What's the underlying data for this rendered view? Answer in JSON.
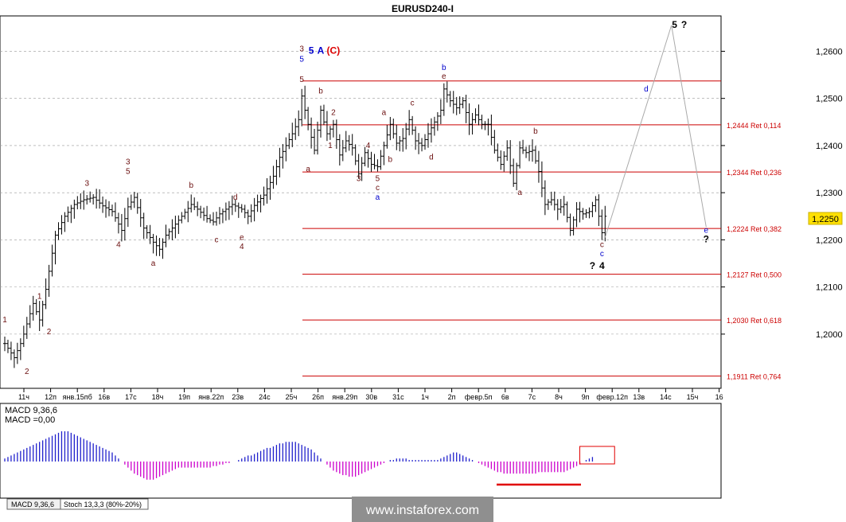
{
  "title": "EURUSD240-I",
  "current_price": "1,2250",
  "watermark": "www.instaforex.com",
  "tabs": [
    "MACD 9,36,6",
    "Stoch 13,3,3 (80%-20%)"
  ],
  "macd_labels": [
    "MACD 9,36,6",
    "MACD =0,00"
  ],
  "colors": {
    "candle": "#000000",
    "fib": "#cc0000",
    "wave_dark": "#6b0f0f",
    "wave_blue": "#0000cc",
    "wave_red": "#dd0000",
    "macd_pos": "#2020cc",
    "macd_neg": "#cc00cc",
    "projection": "#aaaaaa",
    "tag_bg": "#ffe000"
  },
  "chart_data": {
    "type": "candlestick",
    "symbol": "EURUSD240-I",
    "ylim": [
      1.1885,
      1.2675
    ],
    "y_ticks": [
      "1,2600",
      "1,2500",
      "1,2400",
      "1,2300",
      "1,2200",
      "1,2100",
      "1,2000"
    ],
    "x_ticks": [
      "11ч",
      "12п",
      "янв.15пб",
      "16в",
      "17с",
      "18ч",
      "19п",
      "янв.22п",
      "23в",
      "24с",
      "25ч",
      "26п",
      "янв.29п",
      "30в",
      "31с",
      "1ч",
      "2п",
      "февр.5п",
      "6в",
      "7с",
      "8ч",
      "9п",
      "февр.12п",
      "13в",
      "14с",
      "15ч",
      "16"
    ],
    "close_path": [
      [
        0,
        1.198
      ],
      [
        3,
        1.195
      ],
      [
        5,
        1.198
      ],
      [
        6,
        1.2
      ],
      [
        9,
        1.2065
      ],
      [
        11,
        1.203
      ],
      [
        13,
        1.2095
      ],
      [
        16,
        1.221
      ],
      [
        19,
        1.225
      ],
      [
        22,
        1.2275
      ],
      [
        25,
        1.2285
      ],
      [
        28,
        1.229
      ],
      [
        31,
        1.2272
      ],
      [
        34,
        1.226
      ],
      [
        37,
        1.222
      ],
      [
        39,
        1.227
      ],
      [
        41,
        1.229
      ],
      [
        44,
        1.2225
      ],
      [
        47,
        1.2195
      ],
      [
        49,
        1.218
      ],
      [
        51,
        1.221
      ],
      [
        53,
        1.2225
      ],
      [
        56,
        1.225
      ],
      [
        59,
        1.2275
      ],
      [
        61,
        1.2265
      ],
      [
        64,
        1.2245
      ],
      [
        66,
        1.2238
      ],
      [
        68,
        1.2255
      ],
      [
        72,
        1.2275
      ],
      [
        75,
        1.2265
      ],
      [
        77,
        1.225
      ],
      [
        79,
        1.2273
      ],
      [
        82,
        1.2295
      ],
      [
        85,
        1.2335
      ],
      [
        87,
        1.2375
      ],
      [
        89,
        1.24
      ],
      [
        91,
        1.2425
      ],
      [
        93,
        1.2455
      ],
      [
        94,
        1.2505
      ],
      [
        96,
        1.2445
      ],
      [
        98,
        1.239
      ],
      [
        100,
        1.2475
      ],
      [
        102,
        1.2425
      ],
      [
        104,
        1.2445
      ],
      [
        106,
        1.238
      ],
      [
        108,
        1.241
      ],
      [
        110,
        1.2395
      ],
      [
        112,
        1.234
      ],
      [
        114,
        1.2385
      ],
      [
        116,
        1.236
      ],
      [
        118,
        1.2355
      ],
      [
        120,
        1.24
      ],
      [
        122,
        1.2445
      ],
      [
        124,
        1.2405
      ],
      [
        126,
        1.2415
      ],
      [
        128,
        1.2455
      ],
      [
        130,
        1.241
      ],
      [
        132,
        1.24
      ],
      [
        134,
        1.2425
      ],
      [
        136,
        1.245
      ],
      [
        138,
        1.2475
      ],
      [
        139,
        1.252
      ],
      [
        141,
        1.2495
      ],
      [
        143,
        1.248
      ],
      [
        145,
        1.2495
      ],
      [
        147,
        1.2445
      ],
      [
        149,
        1.2465
      ],
      [
        151,
        1.2445
      ],
      [
        153,
        1.2445
      ],
      [
        155,
        1.239
      ],
      [
        157,
        1.236
      ],
      [
        159,
        1.2395
      ],
      [
        161,
        1.232
      ],
      [
        163,
        1.2395
      ],
      [
        165,
        1.2385
      ],
      [
        167,
        1.239
      ],
      [
        169,
        1.2345
      ],
      [
        171,
        1.2275
      ],
      [
        173,
        1.2285
      ],
      [
        175,
        1.2265
      ],
      [
        177,
        1.2275
      ],
      [
        179,
        1.222
      ],
      [
        181,
        1.2265
      ],
      [
        183,
        1.2255
      ],
      [
        185,
        1.226
      ],
      [
        187,
        1.2285
      ],
      [
        189,
        1.2215
      ],
      [
        190,
        1.225
      ]
    ],
    "fib_levels": [
      {
        "label": "1,2444 Ret 0,114",
        "value": 1.2444
      },
      {
        "label": "1,2344 Ret 0,236",
        "value": 1.2344
      },
      {
        "label": "1,2224 Ret 0,382",
        "value": 1.2224
      },
      {
        "label": "1,2127 Ret 0,500",
        "value": 1.2127
      },
      {
        "label": "1,2030 Ret 0,618",
        "value": 1.203
      },
      {
        "label": "1,1911 Ret 0,764",
        "value": 1.1911
      }
    ],
    "wave_labels": [
      {
        "text": "1",
        "x": 0,
        "y": 1.2025,
        "tone": "dark"
      },
      {
        "text": "2",
        "x": 7,
        "y": 1.1915,
        "tone": "dark"
      },
      {
        "text": "1",
        "x": 11,
        "y": 1.2075,
        "tone": "dark"
      },
      {
        "text": "2",
        "x": 14,
        "y": 1.2,
        "tone": "dark"
      },
      {
        "text": "3",
        "x": 26,
        "y": 1.2315,
        "tone": "dark"
      },
      {
        "text": "4",
        "x": 36,
        "y": 1.2185,
        "tone": "dark"
      },
      {
        "text": "3",
        "x": 39,
        "y": 1.236,
        "tone": "dark"
      },
      {
        "text": "5",
        "x": 39,
        "y": 1.234,
        "tone": "dark"
      },
      {
        "text": "a",
        "x": 47,
        "y": 1.2145,
        "tone": "dark"
      },
      {
        "text": "b",
        "x": 59,
        "y": 1.231,
        "tone": "dark"
      },
      {
        "text": "c",
        "x": 67,
        "y": 1.2195,
        "tone": "dark"
      },
      {
        "text": "d",
        "x": 73,
        "y": 1.2285,
        "tone": "dark"
      },
      {
        "text": "e",
        "x": 75,
        "y": 1.22,
        "tone": "dark"
      },
      {
        "text": "4",
        "x": 75,
        "y": 1.218,
        "tone": "dark"
      },
      {
        "text": "3",
        "x": 94,
        "y": 1.26,
        "tone": "dark"
      },
      {
        "text": "5",
        "x": 94,
        "y": 1.2578,
        "tone": "blue"
      },
      {
        "text": "5",
        "x": 94,
        "y": 1.2535,
        "tone": "dark"
      },
      {
        "text": "5",
        "x": 97,
        "y": 1.2595,
        "tone": "blue"
      },
      {
        "text": "A",
        "x": 100,
        "y": 1.2595,
        "tone": "blue"
      },
      {
        "text": "(C)",
        "x": 104,
        "y": 1.2595,
        "tone": "red"
      },
      {
        "text": "a",
        "x": 96,
        "y": 1.2345,
        "tone": "dark"
      },
      {
        "text": "b",
        "x": 100,
        "y": 1.251,
        "tone": "dark"
      },
      {
        "text": "1",
        "x": 103,
        "y": 1.2395,
        "tone": "dark"
      },
      {
        "text": "2",
        "x": 104,
        "y": 1.2465,
        "tone": "dark"
      },
      {
        "text": "3",
        "x": 112,
        "y": 1.2325,
        "tone": "dark"
      },
      {
        "text": "4",
        "x": 115,
        "y": 1.2395,
        "tone": "dark"
      },
      {
        "text": "5",
        "x": 118,
        "y": 1.2325,
        "tone": "dark"
      },
      {
        "text": "c",
        "x": 118,
        "y": 1.2305,
        "tone": "dark"
      },
      {
        "text": "a",
        "x": 118,
        "y": 1.2285,
        "tone": "blue"
      },
      {
        "text": "a",
        "x": 120,
        "y": 1.2465,
        "tone": "dark"
      },
      {
        "text": "b",
        "x": 122,
        "y": 1.2365,
        "tone": "dark"
      },
      {
        "text": "c",
        "x": 129,
        "y": 1.2485,
        "tone": "dark"
      },
      {
        "text": "d",
        "x": 135,
        "y": 1.237,
        "tone": "dark"
      },
      {
        "text": "b",
        "x": 139,
        "y": 1.256,
        "tone": "blue"
      },
      {
        "text": "e",
        "x": 139,
        "y": 1.2542,
        "tone": "dark"
      },
      {
        "text": "a",
        "x": 163,
        "y": 1.2295,
        "tone": "dark"
      },
      {
        "text": "b",
        "x": 168,
        "y": 1.2425,
        "tone": "dark"
      },
      {
        "text": "c",
        "x": 189,
        "y": 1.2185,
        "tone": "dark"
      },
      {
        "text": "c",
        "x": 189,
        "y": 1.2165,
        "tone": "blue"
      },
      {
        "text": "?",
        "x": 186,
        "y": 1.2138,
        "tone": "black"
      },
      {
        "text": "4",
        "x": 189,
        "y": 1.2138,
        "tone": "black"
      },
      {
        "text": "d",
        "x": 203,
        "y": 1.2515,
        "tone": "blue"
      },
      {
        "text": "e",
        "x": 222,
        "y": 1.2215,
        "tone": "blue"
      },
      {
        "text": "?",
        "x": 222,
        "y": 1.2195,
        "tone": "black"
      },
      {
        "text": "5",
        "x": 212,
        "y": 1.265,
        "tone": "black"
      },
      {
        "text": "?",
        "x": 215,
        "y": 1.265,
        "tone": "black"
      }
    ],
    "projection": [
      [
        190,
        1.2205
      ],
      [
        211,
        1.2655
      ],
      [
        222,
        1.2227
      ]
    ],
    "macd": {
      "name": "MACD 9,36,6",
      "current": "0,00",
      "values": [
        2,
        3,
        4,
        5,
        6,
        7,
        8,
        9,
        10,
        11,
        12,
        13,
        14,
        15,
        16,
        17,
        18,
        19,
        20,
        20,
        20,
        19,
        18,
        17,
        16,
        15,
        14,
        13,
        12,
        11,
        10,
        9,
        8,
        7,
        6,
        4,
        2,
        0,
        -2,
        -4,
        -6,
        -8,
        -9,
        -10,
        -11,
        -12,
        -12,
        -12,
        -11,
        -10,
        -9,
        -8,
        -7,
        -6,
        -5,
        -4,
        -4,
        -4,
        -4,
        -4,
        -4,
        -4,
        -4,
        -4,
        -4,
        -4,
        -3,
        -3,
        -2,
        -2,
        -1,
        -1,
        0,
        0,
        1,
        2,
        3,
        4,
        4,
        5,
        6,
        7,
        8,
        9,
        9,
        10,
        11,
        12,
        12,
        13,
        13,
        13,
        13,
        12,
        11,
        10,
        9,
        8,
        6,
        4,
        2,
        0,
        -2,
        -4,
        -6,
        -7,
        -8,
        -9,
        -9,
        -10,
        -10,
        -10,
        -9,
        -8,
        -7,
        -6,
        -5,
        -4,
        -3,
        -2,
        -1,
        0,
        1,
        1,
        2,
        2,
        2,
        2,
        1,
        1,
        1,
        1,
        1,
        1,
        1,
        1,
        1,
        1,
        2,
        3,
        4,
        5,
        6,
        6,
        5,
        4,
        3,
        2,
        1,
        0,
        -1,
        -2,
        -3,
        -4,
        -5,
        -6,
        -7,
        -7,
        -8,
        -8,
        -8,
        -8,
        -8,
        -8,
        -8,
        -8,
        -8,
        -8,
        -8,
        -7,
        -7,
        -7,
        -7,
        -7,
        -7,
        -7,
        -7,
        -7,
        -6,
        -5,
        -4,
        -3,
        -2,
        0,
        1,
        2,
        3
      ],
      "alert_box": [
        183,
        192
      ]
    }
  }
}
